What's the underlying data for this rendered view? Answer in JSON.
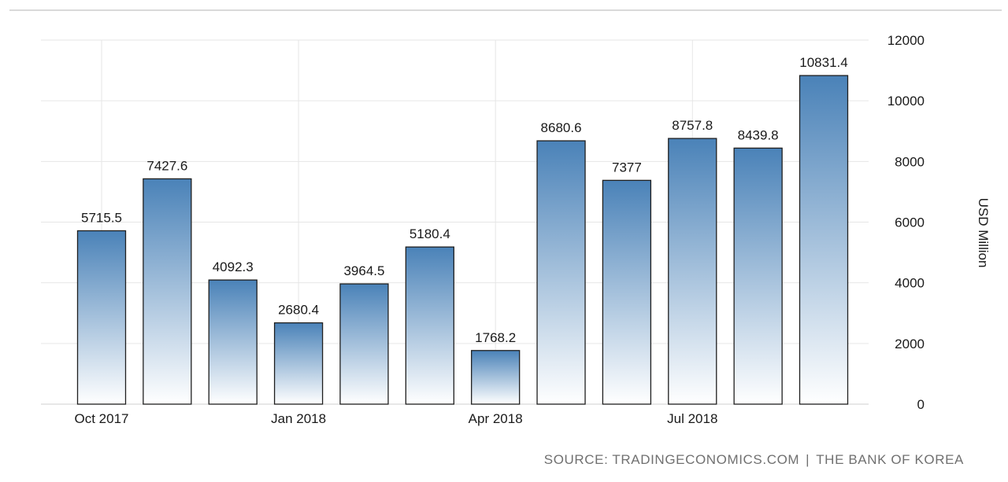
{
  "colors": {
    "bar_top": "#4a82b8",
    "bar_bottom": "#ffffff",
    "bar_stroke": "#1f1f1f",
    "grid": "#e6e6e6",
    "text": "#1a1a1a",
    "source": "#707070"
  },
  "source": {
    "left": "SOURCE: TRADINGECONOMICS.COM",
    "separator": "|",
    "right": "THE BANK OF KOREA"
  },
  "chart_data": {
    "type": "bar",
    "categories": [
      "2017-10",
      "2017-11",
      "2017-12",
      "2018-01",
      "2018-02",
      "2018-03",
      "2018-04",
      "2018-05",
      "2018-06",
      "2018-07",
      "2018-08",
      "2018-09"
    ],
    "values": [
      5715.5,
      7427.6,
      4092.3,
      2680.4,
      3964.5,
      5180.4,
      1768.2,
      8680.6,
      7377,
      8757.8,
      8439.8,
      10831.4
    ],
    "value_labels": [
      "5715.5",
      "7427.6",
      "4092.3",
      "2680.4",
      "3964.5",
      "5180.4",
      "1768.2",
      "8680.6",
      "7377",
      "8757.8",
      "8439.8",
      "10831.4"
    ],
    "x_tick_labels": [
      {
        "category": "2017-10",
        "label": "Oct 2017"
      },
      {
        "category": "2018-01",
        "label": "Jan 2018"
      },
      {
        "category": "2018-04",
        "label": "Apr 2018"
      },
      {
        "category": "2018-07",
        "label": "Jul 2018"
      }
    ],
    "ylabel": "USD Million",
    "ylim": [
      0,
      12000
    ],
    "yticks": [
      0,
      2000,
      4000,
      6000,
      8000,
      10000,
      12000
    ],
    "y_axis_side": "right",
    "grid": true,
    "legend": "none"
  }
}
